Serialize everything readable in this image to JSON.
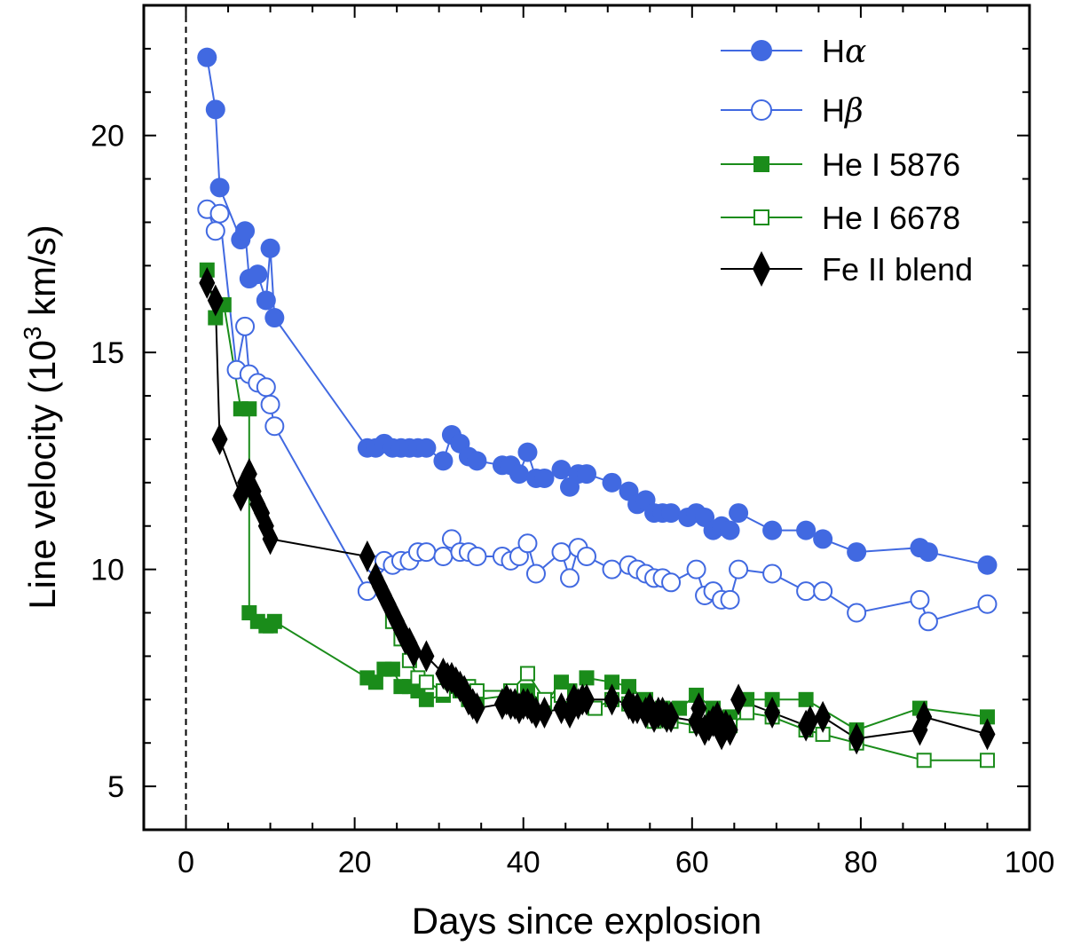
{
  "chart_data": {
    "type": "line",
    "xlabel": "Days since explosion",
    "ylabel_main": "Line velocity (10",
    "ylabel_sup": "3",
    "ylabel_tail": " km/s)",
    "xlim": [
      -5,
      100
    ],
    "ylim": [
      4,
      23
    ],
    "x_ticks": [
      0,
      20,
      40,
      60,
      80,
      100
    ],
    "y_ticks": [
      5,
      10,
      15,
      20
    ],
    "explosion_line_x": 0,
    "series": [
      {
        "name": "Hα",
        "label_main": "H",
        "label_ital": "α",
        "color": "#4169e1",
        "marker": "circle",
        "filled": true,
        "points": [
          [
            2.5,
            21.8
          ],
          [
            3.5,
            20.6
          ],
          [
            4.0,
            18.8
          ],
          [
            6.5,
            17.6
          ],
          [
            7.0,
            17.8
          ],
          [
            7.5,
            16.7
          ],
          [
            8.5,
            16.8
          ],
          [
            9.5,
            16.2
          ],
          [
            10.0,
            17.4
          ],
          [
            10.5,
            15.8
          ],
          [
            21.5,
            12.8
          ],
          [
            22.5,
            12.8
          ],
          [
            23.5,
            12.9
          ],
          [
            24.5,
            12.8
          ],
          [
            25.5,
            12.8
          ],
          [
            26.5,
            12.8
          ],
          [
            27.5,
            12.8
          ],
          [
            28.5,
            12.8
          ],
          [
            30.5,
            12.5
          ],
          [
            31.5,
            13.1
          ],
          [
            32.5,
            12.9
          ],
          [
            33.5,
            12.6
          ],
          [
            34.5,
            12.5
          ],
          [
            37.5,
            12.4
          ],
          [
            38.5,
            12.4
          ],
          [
            39.5,
            12.2
          ],
          [
            40.5,
            12.7
          ],
          [
            41.5,
            12.1
          ],
          [
            42.5,
            12.1
          ],
          [
            44.5,
            12.3
          ],
          [
            45.5,
            11.9
          ],
          [
            46.5,
            12.2
          ],
          [
            47.5,
            12.2
          ],
          [
            50.5,
            12.0
          ],
          [
            52.5,
            11.8
          ],
          [
            53.5,
            11.5
          ],
          [
            54.5,
            11.6
          ],
          [
            55.5,
            11.3
          ],
          [
            56.5,
            11.3
          ],
          [
            57.5,
            11.3
          ],
          [
            59.5,
            11.2
          ],
          [
            60.5,
            11.3
          ],
          [
            61.5,
            11.2
          ],
          [
            62.5,
            10.9
          ],
          [
            63.5,
            11.0
          ],
          [
            64.5,
            10.9
          ],
          [
            65.5,
            11.3
          ],
          [
            69.5,
            10.9
          ],
          [
            73.5,
            10.9
          ],
          [
            75.5,
            10.7
          ],
          [
            79.5,
            10.4
          ],
          [
            87.0,
            10.5
          ],
          [
            88.0,
            10.4
          ],
          [
            95.0,
            10.1
          ]
        ]
      },
      {
        "name": "Hβ",
        "label_main": "H",
        "label_ital": "β",
        "color": "#4169e1",
        "marker": "circle",
        "filled": false,
        "points": [
          [
            2.5,
            18.3
          ],
          [
            3.5,
            17.8
          ],
          [
            4.0,
            18.2
          ],
          [
            6.0,
            14.6
          ],
          [
            7.0,
            15.6
          ],
          [
            7.5,
            14.5
          ],
          [
            8.5,
            14.3
          ],
          [
            9.5,
            14.2
          ],
          [
            10.0,
            13.8
          ],
          [
            10.5,
            13.3
          ],
          [
            21.5,
            9.5
          ],
          [
            22.5,
            10.1
          ],
          [
            23.5,
            10.2
          ],
          [
            24.5,
            10.1
          ],
          [
            25.5,
            10.2
          ],
          [
            26.5,
            10.2
          ],
          [
            27.5,
            10.4
          ],
          [
            28.5,
            10.4
          ],
          [
            30.5,
            10.3
          ],
          [
            31.5,
            10.7
          ],
          [
            32.5,
            10.4
          ],
          [
            33.5,
            10.4
          ],
          [
            34.5,
            10.3
          ],
          [
            37.5,
            10.3
          ],
          [
            38.5,
            10.2
          ],
          [
            39.5,
            10.3
          ],
          [
            40.5,
            10.6
          ],
          [
            41.5,
            9.9
          ],
          [
            44.5,
            10.4
          ],
          [
            45.5,
            9.8
          ],
          [
            46.5,
            10.5
          ],
          [
            47.5,
            10.3
          ],
          [
            50.5,
            10.0
          ],
          [
            52.5,
            10.1
          ],
          [
            53.5,
            10.0
          ],
          [
            54.5,
            9.9
          ],
          [
            55.5,
            9.8
          ],
          [
            56.5,
            9.8
          ],
          [
            57.5,
            9.7
          ],
          [
            60.5,
            10.0
          ],
          [
            61.5,
            9.4
          ],
          [
            62.5,
            9.5
          ],
          [
            63.5,
            9.3
          ],
          [
            64.5,
            9.3
          ],
          [
            65.5,
            10.0
          ],
          [
            69.5,
            9.9
          ],
          [
            73.5,
            9.5
          ],
          [
            75.5,
            9.5
          ],
          [
            79.5,
            9.0
          ],
          [
            87.0,
            9.3
          ],
          [
            88.0,
            8.8
          ],
          [
            95.0,
            9.2
          ]
        ]
      },
      {
        "name": "He I 5876",
        "label_main": "He I 5876",
        "label_ital": "",
        "color": "#1a8c1a",
        "marker": "square",
        "filled": true,
        "points": [
          [
            2.5,
            16.9
          ],
          [
            3.5,
            15.8
          ],
          [
            4.5,
            16.1
          ],
          [
            6.5,
            13.7
          ],
          [
            7.5,
            13.7
          ],
          [
            7.5,
            9.0
          ],
          [
            8.5,
            8.8
          ],
          [
            9.5,
            8.7
          ],
          [
            10.0,
            8.7
          ],
          [
            10.5,
            8.8
          ],
          [
            21.5,
            7.5
          ],
          [
            22.5,
            7.4
          ],
          [
            23.5,
            7.7
          ],
          [
            24.5,
            7.7
          ],
          [
            25.5,
            7.3
          ],
          [
            26.5,
            7.3
          ],
          [
            27.5,
            7.2
          ],
          [
            28.5,
            7.0
          ],
          [
            30.5,
            7.1
          ],
          [
            32.5,
            7.2
          ],
          [
            33.5,
            7.0
          ],
          [
            34.5,
            7.0
          ],
          [
            38.5,
            7.1
          ],
          [
            39.5,
            6.9
          ],
          [
            40.5,
            7.2
          ],
          [
            42.5,
            6.9
          ],
          [
            44.5,
            7.4
          ],
          [
            45.5,
            7.2
          ],
          [
            46.5,
            7.0
          ],
          [
            47.5,
            7.5
          ],
          [
            50.5,
            7.4
          ],
          [
            52.5,
            7.3
          ],
          [
            54.5,
            7.0
          ],
          [
            56.5,
            6.8
          ],
          [
            58.5,
            6.8
          ],
          [
            60.5,
            7.1
          ],
          [
            62.5,
            6.8
          ],
          [
            64.5,
            6.6
          ],
          [
            66.5,
            7.0
          ],
          [
            69.5,
            7.0
          ],
          [
            73.5,
            7.0
          ],
          [
            79.5,
            6.3
          ],
          [
            87.0,
            6.8
          ],
          [
            95.0,
            6.6
          ]
        ]
      },
      {
        "name": "He I 6678",
        "label_main": "He I 6678",
        "label_ital": "",
        "color": "#1a8c1a",
        "marker": "square",
        "filled": false,
        "points": [
          [
            24.5,
            8.8
          ],
          [
            25.5,
            8.4
          ],
          [
            26.5,
            7.9
          ],
          [
            27.5,
            7.5
          ],
          [
            28.5,
            7.4
          ],
          [
            30.5,
            7.2
          ],
          [
            31.5,
            7.4
          ],
          [
            33.5,
            7.3
          ],
          [
            34.5,
            7.2
          ],
          [
            38.5,
            7.2
          ],
          [
            40.5,
            7.6
          ],
          [
            42.5,
            7.0
          ],
          [
            44.5,
            7.1
          ],
          [
            46.5,
            6.9
          ],
          [
            48.5,
            6.8
          ],
          [
            50.5,
            7.0
          ],
          [
            52.5,
            6.9
          ],
          [
            55.5,
            6.5
          ],
          [
            57.5,
            6.5
          ],
          [
            60.5,
            6.4
          ],
          [
            62.5,
            6.5
          ],
          [
            64.5,
            6.4
          ],
          [
            66.5,
            6.7
          ],
          [
            69.5,
            6.6
          ],
          [
            73.5,
            6.3
          ],
          [
            75.5,
            6.2
          ],
          [
            79.5,
            6.0
          ],
          [
            87.5,
            5.6
          ],
          [
            95.0,
            5.6
          ]
        ]
      },
      {
        "name": "Fe II blend",
        "label_main": "Fe II blend",
        "label_ital": "",
        "color": "#000000",
        "marker": "diamond",
        "filled": true,
        "points": [
          [
            2.5,
            16.6
          ],
          [
            3.5,
            16.2
          ],
          [
            4.0,
            13.0
          ],
          [
            6.5,
            11.7
          ],
          [
            7.0,
            12.0
          ],
          [
            7.5,
            12.2
          ],
          [
            8.0,
            11.8
          ],
          [
            8.5,
            11.5
          ],
          [
            9.0,
            11.3
          ],
          [
            9.5,
            11.0
          ],
          [
            10.0,
            10.7
          ],
          [
            21.5,
            10.3
          ],
          [
            22.5,
            9.8
          ],
          [
            23.0,
            9.6
          ],
          [
            23.5,
            9.4
          ],
          [
            24.0,
            9.2
          ],
          [
            24.5,
            9.0
          ],
          [
            25.0,
            8.8
          ],
          [
            25.5,
            8.6
          ],
          [
            26.0,
            8.4
          ],
          [
            26.5,
            8.3
          ],
          [
            27.0,
            8.1
          ],
          [
            28.5,
            8.0
          ],
          [
            30.5,
            7.6
          ],
          [
            31.0,
            7.5
          ],
          [
            31.5,
            7.5
          ],
          [
            32.0,
            7.4
          ],
          [
            32.5,
            7.3
          ],
          [
            33.0,
            7.2
          ],
          [
            33.5,
            7.0
          ],
          [
            34.0,
            6.9
          ],
          [
            34.5,
            6.8
          ],
          [
            37.5,
            6.9
          ],
          [
            38.0,
            7.0
          ],
          [
            38.5,
            6.9
          ],
          [
            39.0,
            6.9
          ],
          [
            39.5,
            6.8
          ],
          [
            40.0,
            6.9
          ],
          [
            40.5,
            6.9
          ],
          [
            41.0,
            6.8
          ],
          [
            41.5,
            6.7
          ],
          [
            42.5,
            6.7
          ],
          [
            44.5,
            6.8
          ],
          [
            45.5,
            6.7
          ],
          [
            46.0,
            7.0
          ],
          [
            46.5,
            6.9
          ],
          [
            47.0,
            7.0
          ],
          [
            47.5,
            7.0
          ],
          [
            50.5,
            7.0
          ],
          [
            52.5,
            6.9
          ],
          [
            53.0,
            6.8
          ],
          [
            53.5,
            6.8
          ],
          [
            54.5,
            6.7
          ],
          [
            55.0,
            6.8
          ],
          [
            55.5,
            6.6
          ],
          [
            56.0,
            6.7
          ],
          [
            56.5,
            6.7
          ],
          [
            57.0,
            6.6
          ],
          [
            57.5,
            6.6
          ],
          [
            60.5,
            6.5
          ],
          [
            60.8,
            6.8
          ],
          [
            61.5,
            6.3
          ],
          [
            62.0,
            6.4
          ],
          [
            62.5,
            6.5
          ],
          [
            63.0,
            6.6
          ],
          [
            63.5,
            6.2
          ],
          [
            64.0,
            6.4
          ],
          [
            64.5,
            6.3
          ],
          [
            65.5,
            7.0
          ],
          [
            69.5,
            6.7
          ],
          [
            73.5,
            6.4
          ],
          [
            74.0,
            6.5
          ],
          [
            75.5,
            6.6
          ],
          [
            79.5,
            6.1
          ],
          [
            87.0,
            6.3
          ],
          [
            87.5,
            6.6
          ],
          [
            95.0,
            6.2
          ]
        ]
      }
    ]
  }
}
